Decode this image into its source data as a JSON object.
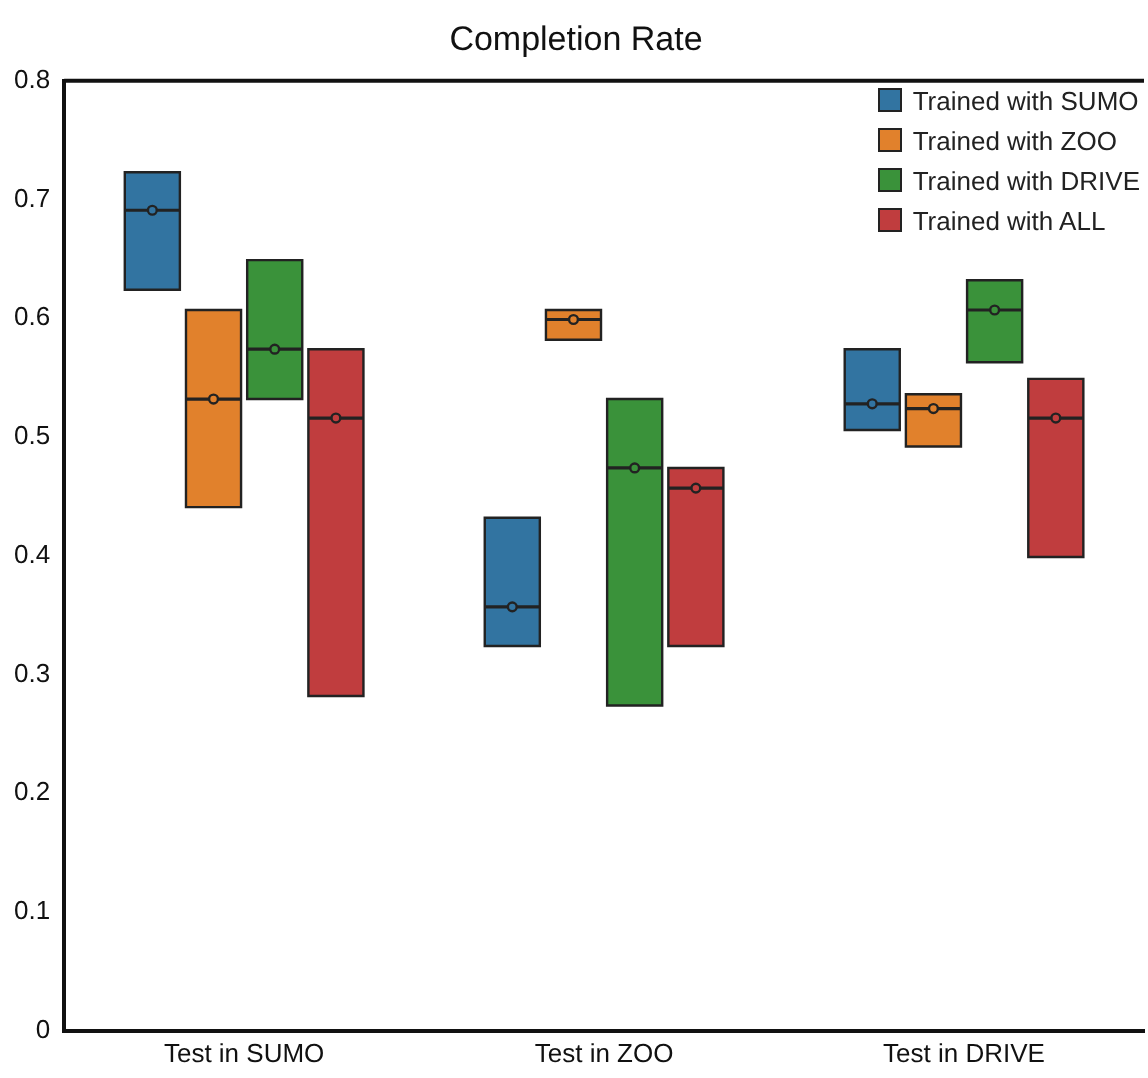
{
  "chart_data": {
    "type": "box",
    "title": "Completion Rate",
    "categories": [
      "Test in SUMO",
      "Test in ZOO",
      "Test in DRIVE"
    ],
    "ylim": [
      0,
      0.8
    ],
    "yticks": [
      0,
      0.1,
      0.2,
      0.3,
      0.4,
      0.5,
      0.6,
      0.7,
      0.8
    ],
    "legend": "top right",
    "grid": false,
    "series": [
      {
        "name": "Trained with SUMO",
        "color": "#3274a1",
        "boxes": [
          {
            "low": 0.624,
            "q1": 0.624,
            "median": 0.691,
            "q3": 0.723,
            "high": 0.723,
            "mean": 0.691
          },
          {
            "low": 0.324,
            "q1": 0.324,
            "median": 0.357,
            "q3": 0.432,
            "high": 0.432,
            "mean": 0.357
          },
          {
            "low": 0.506,
            "q1": 0.506,
            "median": 0.528,
            "q3": 0.574,
            "high": 0.574,
            "mean": 0.528
          }
        ]
      },
      {
        "name": "Trained with ZOO",
        "color": "#e1812c",
        "boxes": [
          {
            "low": 0.441,
            "q1": 0.441,
            "median": 0.532,
            "q3": 0.607,
            "high": 0.607,
            "mean": 0.532
          },
          {
            "low": 0.582,
            "q1": 0.582,
            "median": 0.599,
            "q3": 0.607,
            "high": 0.607,
            "mean": 0.599
          },
          {
            "low": 0.492,
            "q1": 0.492,
            "median": 0.524,
            "q3": 0.536,
            "high": 0.536,
            "mean": 0.524
          }
        ]
      },
      {
        "name": "Trained with DRIVE",
        "color": "#3a923a",
        "boxes": [
          {
            "low": 0.532,
            "q1": 0.532,
            "median": 0.574,
            "q3": 0.649,
            "high": 0.649,
            "mean": 0.574
          },
          {
            "low": 0.274,
            "q1": 0.274,
            "median": 0.474,
            "q3": 0.532,
            "high": 0.532,
            "mean": 0.474
          },
          {
            "low": 0.563,
            "q1": 0.563,
            "median": 0.607,
            "q3": 0.632,
            "high": 0.632,
            "mean": 0.607
          }
        ]
      },
      {
        "name": "Trained with ALL",
        "color": "#c03d3e",
        "boxes": [
          {
            "low": 0.282,
            "q1": 0.282,
            "median": 0.516,
            "q3": 0.574,
            "high": 0.574,
            "mean": 0.516
          },
          {
            "low": 0.324,
            "q1": 0.324,
            "median": 0.457,
            "q3": 0.474,
            "high": 0.474,
            "mean": 0.457
          },
          {
            "low": 0.399,
            "q1": 0.399,
            "median": 0.516,
            "q3": 0.549,
            "high": 0.549,
            "mean": 0.516
          }
        ]
      }
    ]
  }
}
